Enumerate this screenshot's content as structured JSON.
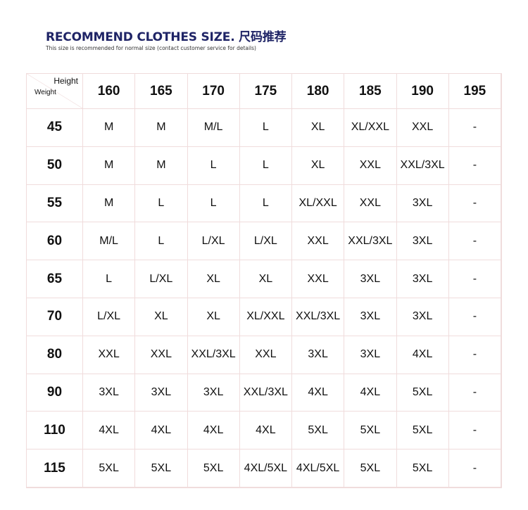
{
  "title": "RECOMMEND CLOTHES SIZE. 尺码推荐",
  "subtitle": "This size is recommended for normal size (contact customer service for details)",
  "corner": {
    "height_label": "Height",
    "weight_label": "Weight"
  },
  "heights": [
    "160",
    "165",
    "170",
    "175",
    "180",
    "185",
    "190",
    "195"
  ],
  "rows": [
    {
      "weight": "45",
      "sizes": [
        "M",
        "M",
        "M/L",
        "L",
        "XL",
        "XL/XXL",
        "XXL",
        "-"
      ]
    },
    {
      "weight": "50",
      "sizes": [
        "M",
        "M",
        "L",
        "L",
        "XL",
        "XXL",
        "XXL/3XL",
        "-"
      ]
    },
    {
      "weight": "55",
      "sizes": [
        "M",
        "L",
        "L",
        "L",
        "XL/XXL",
        "XXL",
        "3XL",
        "-"
      ]
    },
    {
      "weight": "60",
      "sizes": [
        "M/L",
        "L",
        "L/XL",
        "L/XL",
        "XXL",
        "XXL/3XL",
        "3XL",
        "-"
      ]
    },
    {
      "weight": "65",
      "sizes": [
        "L",
        "L/XL",
        "XL",
        "XL",
        "XXL",
        "3XL",
        "3XL",
        "-"
      ]
    },
    {
      "weight": "70",
      "sizes": [
        "L/XL",
        "XL",
        "XL",
        "XL/XXL",
        "XXL/3XL",
        "3XL",
        "3XL",
        "-"
      ]
    },
    {
      "weight": "80",
      "sizes": [
        "XXL",
        "XXL",
        "XXL/3XL",
        "XXL",
        "3XL",
        "3XL",
        "4XL",
        "-"
      ]
    },
    {
      "weight": "90",
      "sizes": [
        "3XL",
        "3XL",
        "3XL",
        "XXL/3XL",
        "4XL",
        "4XL",
        "5XL",
        "-"
      ]
    },
    {
      "weight": "110",
      "sizes": [
        "4XL",
        "4XL",
        "4XL",
        "4XL",
        "5XL",
        "5XL",
        "5XL",
        "-"
      ]
    },
    {
      "weight": "115",
      "sizes": [
        "5XL",
        "5XL",
        "5XL",
        "4XL/5XL",
        "4XL/5XL",
        "5XL",
        "5XL",
        "-"
      ]
    }
  ]
}
